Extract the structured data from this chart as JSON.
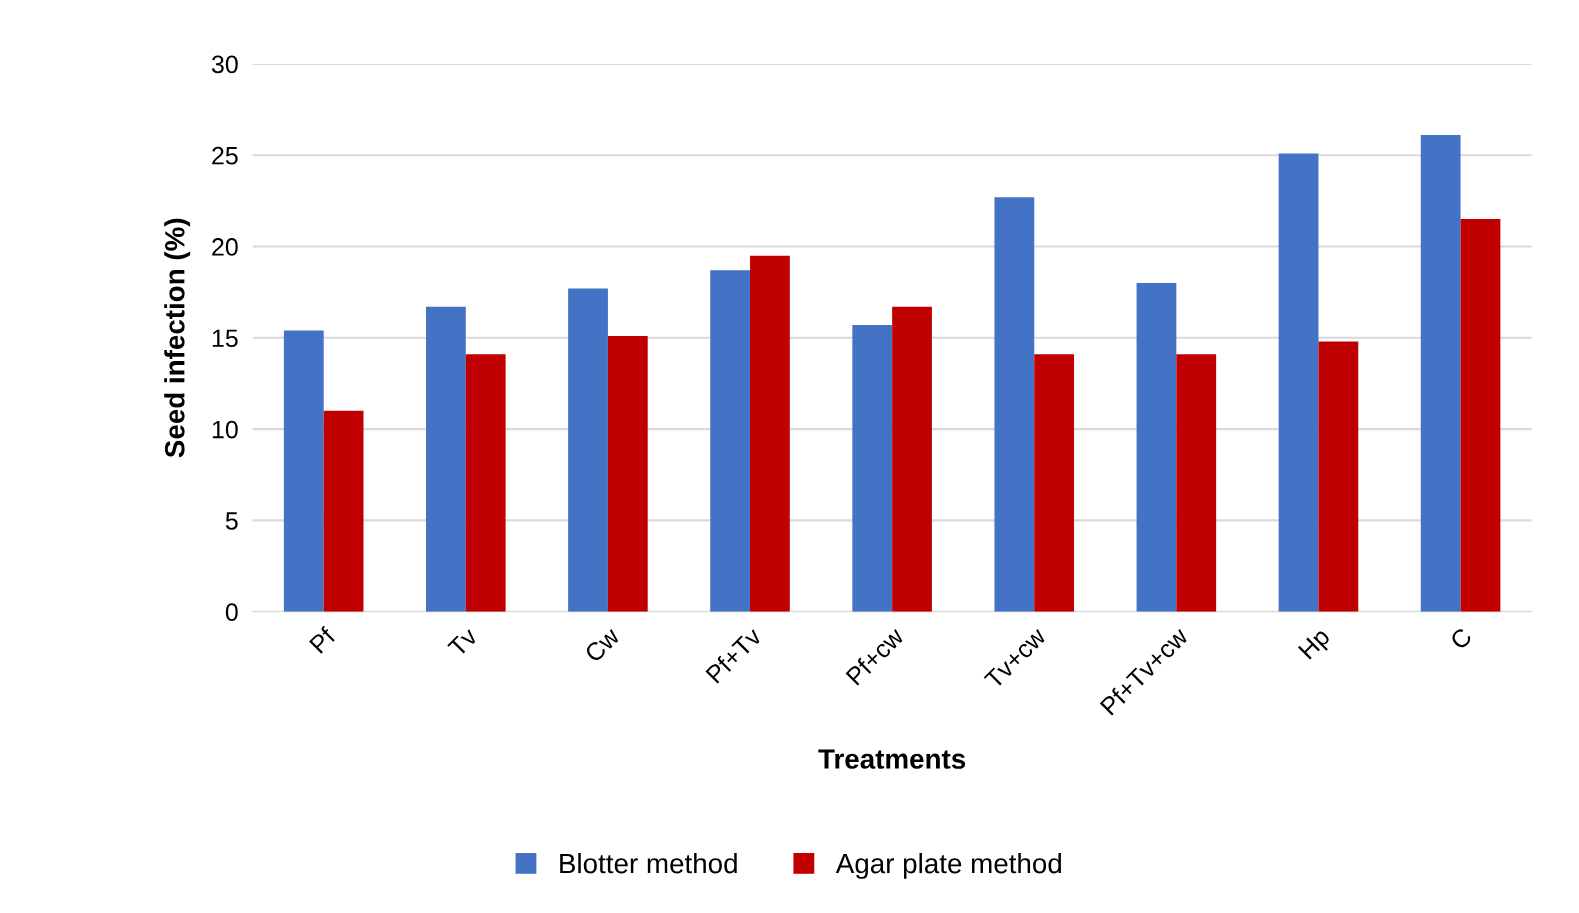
{
  "chart_data": {
    "type": "bar",
    "xlabel": "Treatments",
    "ylabel": "Seed infection (%)",
    "categories": [
      "Pf",
      "Tv",
      "Cw",
      "Pf+Tv",
      "Pf+cw",
      "Tv+cw",
      "Pf+Tv+cw",
      "Hp",
      "C"
    ],
    "series": [
      {
        "name": "Blotter method",
        "color": "#4472c4",
        "values": [
          15.4,
          16.7,
          17.7,
          18.7,
          15.7,
          22.7,
          18.0,
          25.1,
          26.1
        ]
      },
      {
        "name": "Agar plate method",
        "color": "#c00000",
        "values": [
          11.0,
          14.1,
          15.1,
          19.5,
          16.7,
          14.1,
          14.1,
          14.8,
          21.5
        ]
      }
    ],
    "ylim": [
      0,
      30
    ],
    "yticks": [
      0,
      5,
      10,
      15,
      20,
      25,
      30
    ],
    "grid": "y",
    "legend": "bottom"
  }
}
